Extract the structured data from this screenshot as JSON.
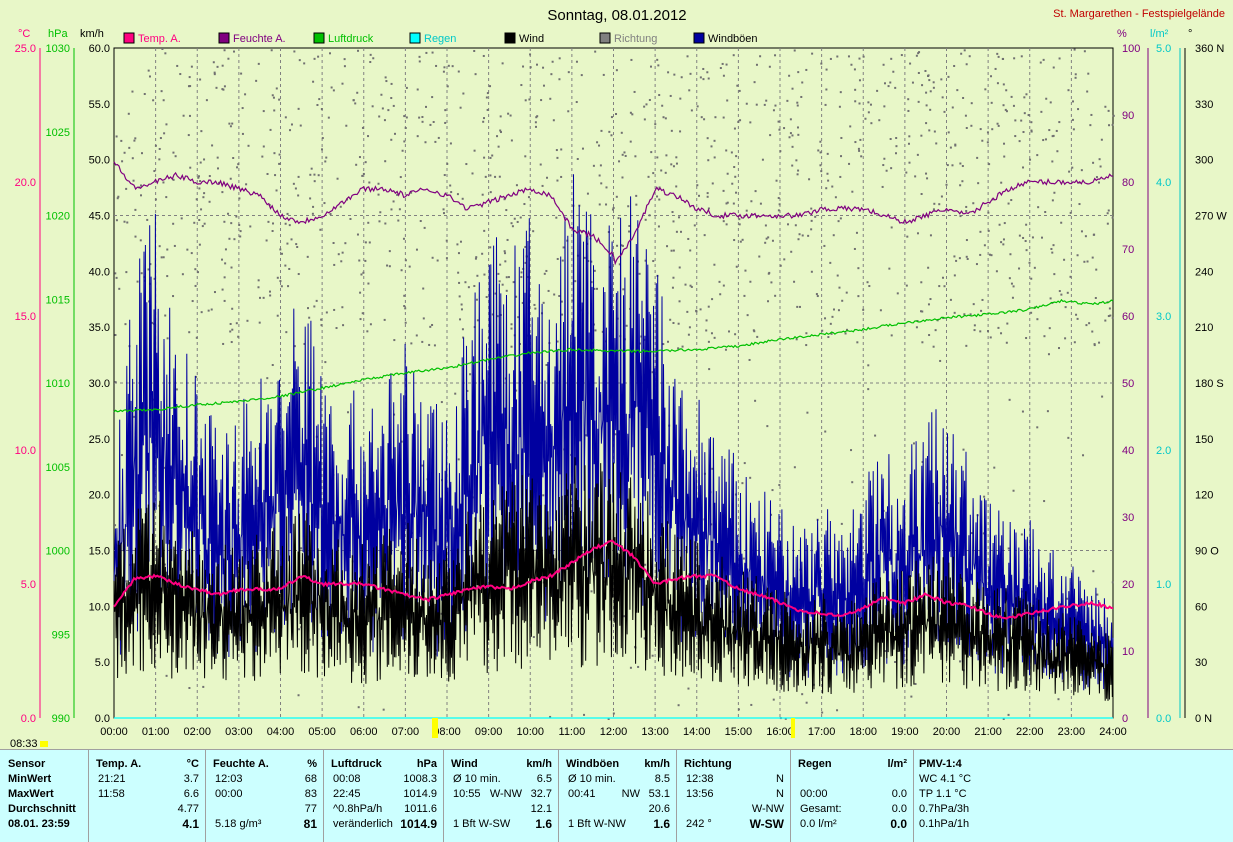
{
  "title": "Sonntag, 08.01.2012",
  "station": "St. Margarethen - Festspielgelände",
  "date_marker": "08:33",
  "legend": [
    {
      "label": "Temp. A.",
      "color": "#ff0080"
    },
    {
      "label": "Feuchte A.",
      "color": "#800080"
    },
    {
      "label": "Luftdruck",
      "color": "#00c000"
    },
    {
      "label": "Regen",
      "color": "#00ffff"
    },
    {
      "label": "Wind",
      "color": "#000000"
    },
    {
      "label": "Richtung",
      "color": "#808080"
    },
    {
      "label": "Windböen",
      "color": "#0000a0"
    }
  ],
  "axes": {
    "temp": {
      "unit": "°C",
      "color": "#ff0080",
      "ticks": [
        "0.0",
        "5.0",
        "10.0",
        "15.0",
        "20.0",
        "25.0"
      ]
    },
    "pressure": {
      "unit": "hPa",
      "color": "#00c000",
      "ticks": [
        "990",
        "995",
        "1000",
        "1005",
        "1010",
        "1015",
        "1020",
        "1025",
        "1030"
      ]
    },
    "wind": {
      "unit": "km/h",
      "color": "#000000",
      "ticks": [
        "0.0",
        "5.0",
        "10.0",
        "15.0",
        "20.0",
        "25.0",
        "30.0",
        "35.0",
        "40.0",
        "45.0",
        "50.0",
        "55.0",
        "60.0"
      ]
    },
    "humidity": {
      "unit": "%",
      "color": "#800080",
      "ticks": [
        "0",
        "10",
        "20",
        "30",
        "40",
        "50",
        "60",
        "70",
        "80",
        "90",
        "100"
      ]
    },
    "rain": {
      "unit": "l/m²",
      "color": "#00ffff",
      "ticks": [
        "0.0",
        "1.0",
        "2.0",
        "3.0",
        "4.0",
        "5.0"
      ]
    },
    "direction": {
      "unit": "°",
      "color": "#000000",
      "ticks": [
        "0  N",
        "30",
        "60",
        "90  O",
        "120",
        "150",
        "180  S",
        "210",
        "240",
        "270  W",
        "300",
        "330",
        "360  N"
      ]
    },
    "time": {
      "ticks": [
        "00:00",
        "01:00",
        "02:00",
        "03:00",
        "04:00",
        "05:00",
        "06:00",
        "07:00",
        "08:00",
        "09:00",
        "10:00",
        "11:00",
        "12:00",
        "13:00",
        "14:00",
        "15:00",
        "16:00",
        "17:00",
        "18:00",
        "19:00",
        "20:00",
        "21:00",
        "22:00",
        "23:00",
        "24:00"
      ]
    }
  },
  "chart_data": {
    "type": "line",
    "x_unit": "hour of day",
    "series": [
      {
        "name": "Temp. A.",
        "axis": "temp",
        "points": [
          [
            0,
            4.2
          ],
          [
            0.5,
            5.2
          ],
          [
            1,
            5.3
          ],
          [
            1.5,
            5.0
          ],
          [
            2,
            4.8
          ],
          [
            2.5,
            4.6
          ],
          [
            3,
            4.8
          ],
          [
            3.5,
            4.8
          ],
          [
            4,
            4.8
          ],
          [
            4.5,
            5.3
          ],
          [
            5,
            5.0
          ],
          [
            6,
            5.0
          ],
          [
            7,
            4.6
          ],
          [
            7.5,
            4.4
          ],
          [
            8,
            4.6
          ],
          [
            8.5,
            4.8
          ],
          [
            9,
            4.9
          ],
          [
            9.5,
            4.8
          ],
          [
            10,
            5.1
          ],
          [
            10.5,
            5.3
          ],
          [
            11,
            5.8
          ],
          [
            11.5,
            6.3
          ],
          [
            11.97,
            6.6
          ],
          [
            12.5,
            6.0
          ],
          [
            13,
            5.0
          ],
          [
            13.5,
            5.2
          ],
          [
            14,
            5.3
          ],
          [
            14.5,
            5.3
          ],
          [
            15,
            4.8
          ],
          [
            15.5,
            4.6
          ],
          [
            16,
            4.3
          ],
          [
            16.5,
            4.0
          ],
          [
            17,
            3.9
          ],
          [
            17.5,
            3.8
          ],
          [
            18,
            4.1
          ],
          [
            18.5,
            4.5
          ],
          [
            19,
            4.3
          ],
          [
            19.5,
            4.6
          ],
          [
            20,
            4.3
          ],
          [
            20.5,
            4.2
          ],
          [
            21.35,
            3.7
          ],
          [
            22,
            3.9
          ],
          [
            23,
            4.2
          ],
          [
            23.5,
            4.3
          ],
          [
            24,
            4.1
          ]
        ]
      },
      {
        "name": "Feuchte A.",
        "axis": "humidity",
        "points": [
          [
            0,
            83
          ],
          [
            0.5,
            79
          ],
          [
            1,
            80
          ],
          [
            1.5,
            81
          ],
          [
            2,
            80
          ],
          [
            2.5,
            80
          ],
          [
            3,
            79
          ],
          [
            3.5,
            78
          ],
          [
            4,
            75
          ],
          [
            4.5,
            74
          ],
          [
            5,
            75
          ],
          [
            5.5,
            77
          ],
          [
            6,
            79
          ],
          [
            6.5,
            79
          ],
          [
            7,
            78
          ],
          [
            7.5,
            79
          ],
          [
            8,
            78
          ],
          [
            8.5,
            76
          ],
          [
            9,
            77
          ],
          [
            9.5,
            78
          ],
          [
            10,
            79
          ],
          [
            10.5,
            78
          ],
          [
            11,
            73
          ],
          [
            11.5,
            72
          ],
          [
            12,
            69
          ],
          [
            12.05,
            68
          ],
          [
            12.5,
            72
          ],
          [
            13,
            79
          ],
          [
            13.5,
            78
          ],
          [
            14,
            76
          ],
          [
            14.5,
            75
          ],
          [
            15,
            75
          ],
          [
            16,
            75
          ],
          [
            16.5,
            75
          ],
          [
            17,
            76
          ],
          [
            18,
            76
          ],
          [
            18.5,
            75
          ],
          [
            19,
            74
          ],
          [
            19.5,
            75
          ],
          [
            20,
            76
          ],
          [
            20.5,
            75
          ],
          [
            21,
            77
          ],
          [
            21.5,
            79
          ],
          [
            22,
            80
          ],
          [
            23,
            80
          ],
          [
            23.5,
            80
          ],
          [
            24,
            81
          ]
        ]
      },
      {
        "name": "Luftdruck",
        "axis": "pressure",
        "points": [
          [
            0,
            1008.3
          ],
          [
            1,
            1008.4
          ],
          [
            2,
            1008.7
          ],
          [
            3,
            1008.9
          ],
          [
            4,
            1009.2
          ],
          [
            5,
            1009.7
          ],
          [
            6,
            1010.2
          ],
          [
            7,
            1010.6
          ],
          [
            8,
            1010.9
          ],
          [
            9,
            1011.4
          ],
          [
            10,
            1011.8
          ],
          [
            11,
            1012.0
          ],
          [
            12,
            1011.9
          ],
          [
            13,
            1011.9
          ],
          [
            14,
            1012.0
          ],
          [
            15,
            1012.2
          ],
          [
            16,
            1012.6
          ],
          [
            17,
            1012.9
          ],
          [
            18,
            1013.2
          ],
          [
            19,
            1013.6
          ],
          [
            20,
            1013.9
          ],
          [
            21,
            1014.1
          ],
          [
            22,
            1014.4
          ],
          [
            22.75,
            1014.9
          ],
          [
            23.5,
            1014.7
          ],
          [
            24,
            1014.9
          ]
        ]
      },
      {
        "name": "Regen",
        "axis": "rain",
        "points": [
          [
            0,
            0.0
          ],
          [
            24,
            0.0
          ]
        ]
      }
    ],
    "envelopes": [
      {
        "name": "Windböen",
        "axis": "wind",
        "points": [
          [
            0,
            22
          ],
          [
            0.5,
            38
          ],
          [
            1,
            44
          ],
          [
            1.5,
            34
          ],
          [
            2,
            29
          ],
          [
            2.5,
            25
          ],
          [
            3,
            27
          ],
          [
            3.5,
            30
          ],
          [
            4,
            32
          ],
          [
            4.5,
            38
          ],
          [
            5,
            32
          ],
          [
            5.5,
            28
          ],
          [
            6,
            28
          ],
          [
            6.5,
            30
          ],
          [
            7,
            32
          ],
          [
            7.5,
            28
          ],
          [
            8,
            27
          ],
          [
            8.5,
            36
          ],
          [
            9,
            42
          ],
          [
            9.5,
            40
          ],
          [
            10,
            43
          ],
          [
            10.5,
            38
          ],
          [
            11,
            48
          ],
          [
            11.5,
            44
          ],
          [
            12,
            43
          ],
          [
            12.5,
            45
          ],
          [
            13,
            40
          ],
          [
            13.5,
            30
          ],
          [
            14,
            28
          ],
          [
            14.5,
            25
          ],
          [
            15,
            22
          ],
          [
            15.5,
            20
          ],
          [
            16,
            18
          ],
          [
            16.5,
            17
          ],
          [
            17,
            19
          ],
          [
            17.5,
            16
          ],
          [
            18,
            21
          ],
          [
            18.5,
            24
          ],
          [
            19,
            23
          ],
          [
            19.5,
            26
          ],
          [
            20,
            29
          ],
          [
            20.5,
            23
          ],
          [
            21,
            19
          ],
          [
            21.5,
            18
          ],
          [
            22,
            17
          ],
          [
            22.5,
            15
          ],
          [
            23,
            13
          ],
          [
            23.5,
            12
          ],
          [
            24,
            10
          ]
        ]
      },
      {
        "name": "Wind",
        "axis": "wind",
        "points": [
          [
            0,
            15
          ],
          [
            0.5,
            18
          ],
          [
            1,
            19
          ],
          [
            1.5,
            17
          ],
          [
            2,
            16
          ],
          [
            2.5,
            15
          ],
          [
            3,
            15
          ],
          [
            3.5,
            16
          ],
          [
            4,
            17
          ],
          [
            4.5,
            18
          ],
          [
            5,
            17
          ],
          [
            5.5,
            15
          ],
          [
            6,
            15
          ],
          [
            6.5,
            16
          ],
          [
            7,
            17
          ],
          [
            7.5,
            15
          ],
          [
            8,
            15
          ],
          [
            8.5,
            18
          ],
          [
            9,
            20
          ],
          [
            9.5,
            21
          ],
          [
            10,
            22
          ],
          [
            10.5,
            20
          ],
          [
            11,
            23
          ],
          [
            11.5,
            22
          ],
          [
            12,
            22
          ],
          [
            12.5,
            22
          ],
          [
            13,
            19
          ],
          [
            13.5,
            16
          ],
          [
            14,
            15
          ],
          [
            14.5,
            14
          ],
          [
            15,
            13
          ],
          [
            15.5,
            12
          ],
          [
            16,
            11
          ],
          [
            16.5,
            10
          ],
          [
            17,
            11
          ],
          [
            17.5,
            9
          ],
          [
            18,
            12
          ],
          [
            18.5,
            13
          ],
          [
            19,
            13
          ],
          [
            19.5,
            14
          ],
          [
            20,
            15
          ],
          [
            20.5,
            13
          ],
          [
            21,
            12
          ],
          [
            21.5,
            11
          ],
          [
            22,
            11
          ],
          [
            22.5,
            9
          ],
          [
            23,
            9
          ],
          [
            23.5,
            8
          ],
          [
            24,
            7
          ]
        ]
      }
    ]
  },
  "table": {
    "sensor": {
      "head": "Sensor",
      "rows": [
        "MinWert",
        "MaxWert",
        "Durchschnitt",
        "08.01.  23:59"
      ]
    },
    "temp": {
      "head": "Temp. A.",
      "unit": "°C",
      "rows": [
        [
          "21:21",
          "3.7"
        ],
        [
          "11:58",
          "6.6"
        ],
        [
          "",
          "4.77"
        ],
        [
          "",
          "4.1"
        ]
      ]
    },
    "hum": {
      "head": "Feuchte A.",
      "unit": "%",
      "rows": [
        [
          "12:03",
          "68"
        ],
        [
          "00:00",
          "83"
        ],
        [
          "",
          "77"
        ],
        [
          "5.18 g/m³",
          "81"
        ]
      ]
    },
    "press": {
      "head": "Luftdruck",
      "unit": "hPa",
      "rows": [
        [
          "00:08",
          "1008.3"
        ],
        [
          "22:45",
          "1014.9"
        ],
        [
          "^0.8hPa/h",
          "1011.6"
        ],
        [
          "veränderlich",
          "1014.9"
        ]
      ]
    },
    "wind": {
      "head": "Wind",
      "unit": "km/h",
      "rows": [
        [
          "Ø 10 min.",
          "",
          "6.5"
        ],
        [
          "10:55",
          "W-NW",
          "32.7"
        ],
        [
          "",
          "",
          "12.1"
        ],
        [
          "1 Bft W-SW",
          "",
          "1.6"
        ]
      ]
    },
    "gust": {
      "head": "Windböen",
      "unit": "km/h",
      "rows": [
        [
          "Ø 10 min.",
          "",
          "8.5"
        ],
        [
          "00:41",
          "NW",
          "53.1"
        ],
        [
          "",
          "",
          "20.6"
        ],
        [
          "1 Bft W-NW",
          "",
          "1.6"
        ]
      ]
    },
    "dir": {
      "head": "Richtung",
      "rows": [
        [
          "12:38",
          "N"
        ],
        [
          "13:56",
          "N"
        ],
        [
          "",
          "W-NW"
        ],
        [
          "242 °",
          "W-SW"
        ]
      ]
    },
    "rain": {
      "head": "Regen",
      "unit": "l/m²",
      "rows": [
        [
          "",
          ""
        ],
        [
          "00:00",
          "0.0"
        ],
        [
          "Gesamt:",
          "0.0"
        ],
        [
          "0.0 l/m²",
          "0.0"
        ]
      ]
    },
    "pmv": {
      "head": "PMV-1:4",
      "rows": [
        "WC 4.1 °C",
        "TP 1.1 °C",
        "0.7hPa/3h",
        "0.1hPa/1h"
      ]
    }
  }
}
